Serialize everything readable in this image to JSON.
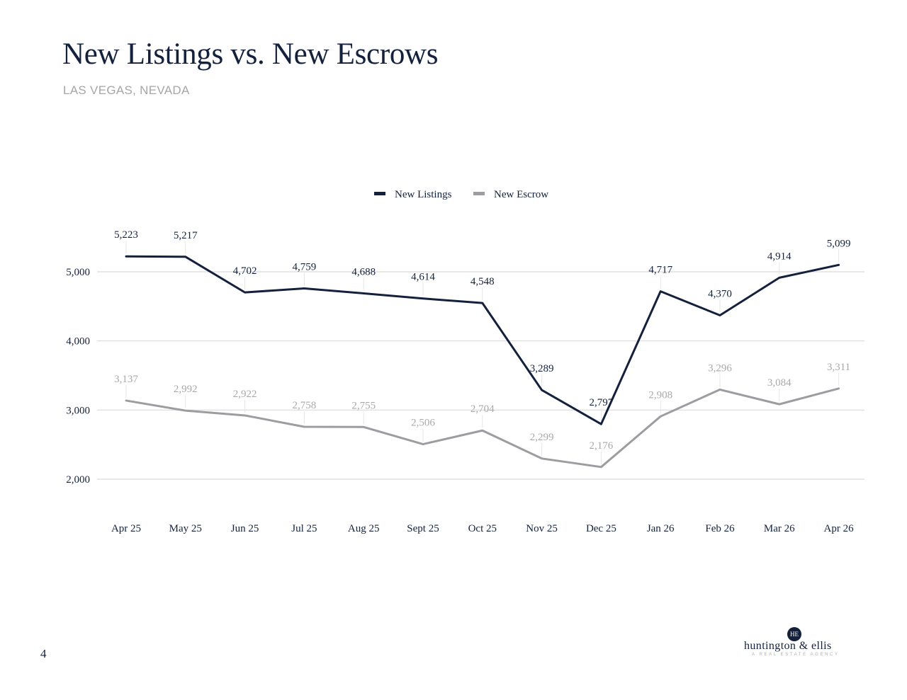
{
  "page": {
    "title": "New Listings vs. New Escrows",
    "subtitle": "LAS VEGAS, NEVADA",
    "page_number": "4"
  },
  "logo": {
    "monogram": "HE",
    "name": "huntington & ellis",
    "tagline": "A REAL ESTATE AGENCY"
  },
  "chart_data": {
    "type": "line",
    "categories": [
      "Apr 25",
      "May 25",
      "Jun 25",
      "Jul 25",
      "Aug 25",
      "Sept 25",
      "Oct 25",
      "Nov 25",
      "Dec 25",
      "Jan 26",
      "Feb 26",
      "Mar 26",
      "Apr 26"
    ],
    "series": [
      {
        "name": "New Listings",
        "color": "#14213d",
        "values": [
          5223,
          5217,
          4702,
          4759,
          4688,
          4614,
          4548,
          3289,
          2797,
          4717,
          4370,
          4914,
          5099
        ],
        "labels": [
          "5,223",
          "5,217",
          "4,702",
          "4,759",
          "4,688",
          "4,614",
          "4,548",
          "3,289",
          "2,797",
          "4,717",
          "4,370",
          "4,914",
          "5,099"
        ]
      },
      {
        "name": "New Escrow",
        "color": "#9d9ca1",
        "values": [
          3137,
          2992,
          2922,
          2758,
          2755,
          2506,
          2704,
          2299,
          2176,
          2908,
          3296,
          3084,
          3311
        ],
        "labels": [
          "3,137",
          "2,992",
          "2,922",
          "2,758",
          "2,755",
          "2,506",
          "2,704",
          "2,299",
          "2,176",
          "2,908",
          "3,296",
          "3,084",
          "3,311"
        ]
      }
    ],
    "y_ticks": [
      2000,
      3000,
      4000,
      5000
    ],
    "y_tick_labels": [
      "2,000",
      "3,000",
      "4,000",
      "5,000"
    ],
    "ylim": [
      1500,
      5500
    ],
    "grid": true,
    "legend_position": "top-center"
  }
}
